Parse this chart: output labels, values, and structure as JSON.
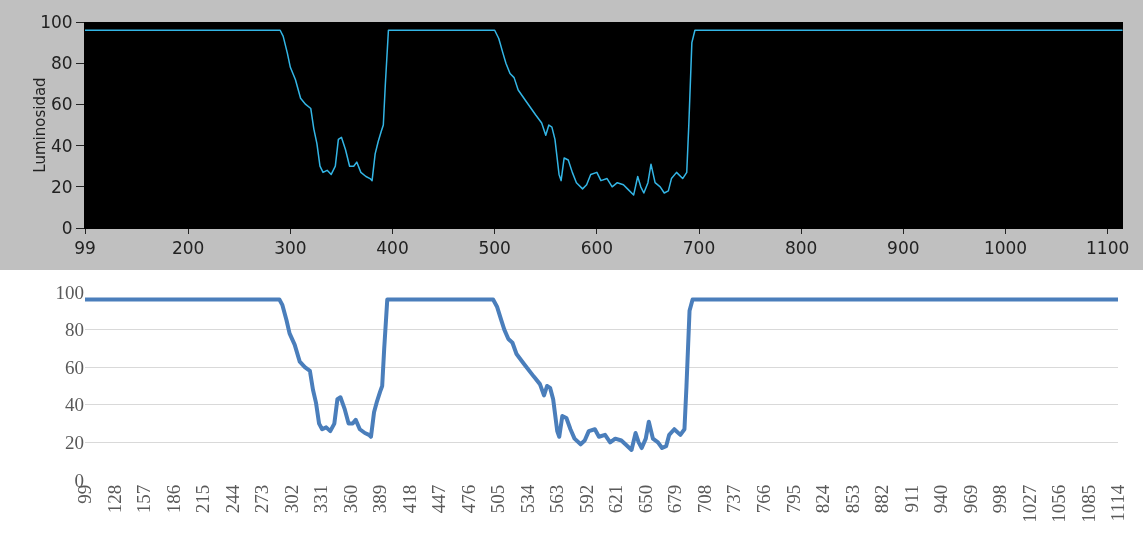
{
  "chart_data": [
    {
      "type": "line",
      "ylabel": "Luminosidad",
      "x": [
        99,
        290,
        293,
        297,
        300,
        305,
        310,
        315,
        320,
        323,
        326,
        329,
        332,
        336,
        340,
        344,
        347,
        350,
        354,
        358,
        362,
        365,
        369,
        374,
        378,
        380,
        383,
        386,
        389,
        391,
        393,
        396,
        500,
        504,
        508,
        511,
        515,
        519,
        523,
        530,
        540,
        546,
        550,
        553,
        556,
        559,
        563,
        565,
        568,
        572,
        576,
        580,
        586,
        590,
        594,
        600,
        604,
        610,
        615,
        620,
        626,
        630,
        636,
        640,
        643,
        646,
        650,
        653,
        657,
        662,
        666,
        670,
        673,
        678,
        684,
        688,
        690,
        693,
        696,
        830,
        900,
        1114
      ],
      "series": [
        {
          "color": "#33b5e5",
          "values": [
            96,
            96,
            93,
            85,
            78,
            72,
            63,
            60,
            58,
            48,
            41,
            30,
            27,
            28,
            26,
            30,
            43,
            44,
            38,
            30,
            30,
            32,
            27,
            25,
            24,
            23,
            36,
            42,
            47,
            50,
            70,
            96,
            96,
            92,
            85,
            80,
            75,
            73,
            67,
            62,
            55,
            51,
            45,
            50,
            49,
            43,
            26,
            23,
            34,
            33,
            27,
            22,
            19,
            21,
            26,
            27,
            23,
            24,
            20,
            22,
            21,
            19,
            16,
            25,
            20,
            17,
            22,
            31,
            22,
            20,
            17,
            18,
            24,
            27,
            24,
            27,
            50,
            90,
            96,
            96,
            96,
            96
          ]
        }
      ],
      "xlim": [
        99,
        1115
      ],
      "xticks": [
        99,
        200,
        300,
        400,
        500,
        600,
        700,
        800,
        900,
        1000,
        1100
      ],
      "ylim": [
        0,
        100
      ],
      "yticks": [
        0,
        20,
        40,
        60,
        80,
        100
      ],
      "grid": false,
      "marker": "none",
      "line_style": "solid"
    },
    {
      "type": "line",
      "x": [
        99,
        290,
        293,
        297,
        300,
        305,
        310,
        315,
        320,
        323,
        326,
        329,
        332,
        336,
        340,
        344,
        347,
        350,
        354,
        358,
        362,
        365,
        369,
        374,
        378,
        380,
        383,
        386,
        389,
        391,
        393,
        396,
        500,
        504,
        508,
        511,
        515,
        519,
        523,
        530,
        540,
        546,
        550,
        553,
        556,
        559,
        563,
        565,
        568,
        572,
        576,
        580,
        586,
        590,
        594,
        600,
        604,
        610,
        615,
        620,
        626,
        630,
        636,
        640,
        643,
        646,
        650,
        653,
        657,
        662,
        666,
        670,
        673,
        678,
        684,
        688,
        690,
        693,
        696,
        830,
        900,
        1114
      ],
      "series": [
        {
          "color": "#4a7ebb",
          "values": [
            96,
            96,
            93,
            85,
            78,
            72,
            63,
            60,
            58,
            48,
            41,
            30,
            27,
            28,
            26,
            30,
            43,
            44,
            38,
            30,
            30,
            32,
            27,
            25,
            24,
            23,
            36,
            42,
            47,
            50,
            70,
            96,
            96,
            92,
            85,
            80,
            75,
            73,
            67,
            62,
            55,
            51,
            45,
            50,
            49,
            43,
            26,
            23,
            34,
            33,
            27,
            22,
            19,
            21,
            26,
            27,
            23,
            24,
            20,
            22,
            21,
            19,
            16,
            25,
            20,
            17,
            22,
            31,
            22,
            20,
            17,
            18,
            24,
            27,
            24,
            27,
            50,
            90,
            96,
            96,
            96,
            96
          ]
        }
      ],
      "xlim": [
        99,
        1114
      ],
      "xticks": [
        99,
        128,
        157,
        186,
        215,
        244,
        273,
        302,
        331,
        360,
        389,
        418,
        447,
        476,
        505,
        534,
        563,
        592,
        621,
        650,
        679,
        708,
        737,
        766,
        795,
        824,
        853,
        882,
        911,
        940,
        969,
        998,
        1027,
        1056,
        1085,
        1114
      ],
      "ylim": [
        0,
        100
      ],
      "yticks": [
        0,
        20,
        40,
        60,
        80,
        100
      ],
      "grid": "y",
      "marker": "none",
      "line_style": "solid"
    }
  ]
}
